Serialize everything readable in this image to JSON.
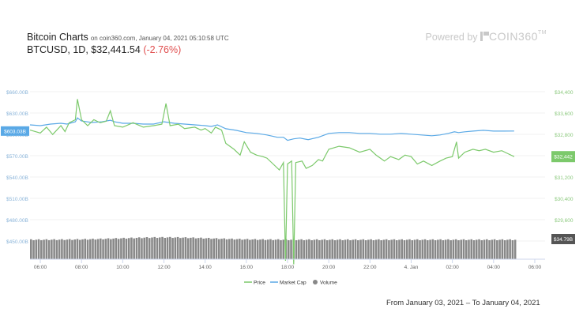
{
  "header": {
    "title": "Bitcoin Charts",
    "subtitle": "on coin360.com, January 04, 2021 05:10:58 UTC",
    "quote": "BTCUSD, 1D, $32,441.54",
    "change": "(-2.76%)",
    "powered_by": "Powered by",
    "brand": "COIN360",
    "brand_tm": "TM"
  },
  "footer": {
    "range": "From January 03, 2021 – To January 04, 2021"
  },
  "colors": {
    "price": "#7cc96b",
    "market_cap": "#5aa9e6",
    "volume": "#888888",
    "left_axis": "#8ab4d9",
    "right_axis": "#8cc97e"
  },
  "chart_data": {
    "type": "line",
    "x_ticks": [
      "06:00",
      "08:00",
      "10:00",
      "12:00",
      "14:00",
      "16:00",
      "18:00",
      "20:00",
      "22:00",
      "4. Jan",
      "02:00",
      "04:00",
      "06:00"
    ],
    "x_tick_hours": [
      6,
      8,
      10,
      12,
      14,
      16,
      18,
      20,
      22,
      24,
      26,
      28,
      30
    ],
    "x_range": [
      5.5,
      30.5
    ],
    "left_axis": {
      "ticks": [
        "$660.00B",
        "$630.00B",
        "$600.00B",
        "$570.00B",
        "$540.00B",
        "$510.00B",
        "$480.00B",
        "$450.00B"
      ],
      "range": [
        436,
        670
      ]
    },
    "right_axis": {
      "ticks": [
        "$34,400",
        "$33,600",
        "$32,800",
        "$32,000",
        "$31,200",
        "$30,400",
        "$29,600"
      ],
      "range": [
        28920,
        35080
      ]
    },
    "current_labels": {
      "market_cap": "$603.03B",
      "price": "$32,442",
      "volume": "$34.79B"
    },
    "series": [
      {
        "name": "Price",
        "axis": "right",
        "points": [
          [
            5.5,
            33350
          ],
          [
            6.0,
            33250
          ],
          [
            6.3,
            33450
          ],
          [
            6.6,
            33200
          ],
          [
            7.0,
            33500
          ],
          [
            7.2,
            33300
          ],
          [
            7.4,
            33600
          ],
          [
            7.7,
            33700
          ],
          [
            7.8,
            34400
          ],
          [
            8.0,
            33700
          ],
          [
            8.3,
            33500
          ],
          [
            8.6,
            33700
          ],
          [
            8.9,
            33600
          ],
          [
            9.2,
            33650
          ],
          [
            9.4,
            34000
          ],
          [
            9.6,
            33500
          ],
          [
            10.0,
            33450
          ],
          [
            10.5,
            33600
          ],
          [
            11.0,
            33450
          ],
          [
            11.5,
            33500
          ],
          [
            11.9,
            33550
          ],
          [
            12.1,
            34250
          ],
          [
            12.3,
            33500
          ],
          [
            12.7,
            33550
          ],
          [
            13.0,
            33400
          ],
          [
            13.5,
            33450
          ],
          [
            13.8,
            33350
          ],
          [
            14.0,
            33400
          ],
          [
            14.3,
            33250
          ],
          [
            14.5,
            33450
          ],
          [
            14.8,
            33350
          ],
          [
            15.0,
            32900
          ],
          [
            15.4,
            32700
          ],
          [
            15.7,
            32500
          ],
          [
            15.9,
            32950
          ],
          [
            16.2,
            32600
          ],
          [
            16.5,
            32500
          ],
          [
            16.8,
            32450
          ],
          [
            17.0,
            32400
          ],
          [
            17.3,
            32200
          ],
          [
            17.6,
            32000
          ],
          [
            17.8,
            32250
          ],
          [
            17.9,
            28920
          ],
          [
            18.0,
            32200
          ],
          [
            18.2,
            32300
          ],
          [
            18.3,
            28800
          ],
          [
            18.4,
            32250
          ],
          [
            18.7,
            32300
          ],
          [
            18.9,
            32050
          ],
          [
            19.2,
            32150
          ],
          [
            19.5,
            32350
          ],
          [
            19.7,
            32300
          ],
          [
            20.0,
            32700
          ],
          [
            20.5,
            32800
          ],
          [
            21.0,
            32750
          ],
          [
            21.5,
            32600
          ],
          [
            22.0,
            32700
          ],
          [
            22.3,
            32500
          ],
          [
            22.7,
            32300
          ],
          [
            23.0,
            32450
          ],
          [
            23.4,
            32350
          ],
          [
            23.7,
            32500
          ],
          [
            24.0,
            32450
          ],
          [
            24.3,
            32200
          ],
          [
            24.6,
            32300
          ],
          [
            25.0,
            32150
          ],
          [
            25.4,
            32300
          ],
          [
            25.7,
            32400
          ],
          [
            26.0,
            32450
          ],
          [
            26.2,
            32950
          ],
          [
            26.3,
            32400
          ],
          [
            26.6,
            32600
          ],
          [
            27.0,
            32700
          ],
          [
            27.3,
            32650
          ],
          [
            27.6,
            32700
          ],
          [
            28.0,
            32600
          ],
          [
            28.4,
            32650
          ],
          [
            28.7,
            32550
          ],
          [
            29.0,
            32450
          ]
        ]
      },
      {
        "name": "Market Cap",
        "axis": "left",
        "points": [
          [
            5.5,
            611
          ],
          [
            6.0,
            610
          ],
          [
            6.5,
            612
          ],
          [
            7.0,
            613
          ],
          [
            7.3,
            612
          ],
          [
            7.7,
            615
          ],
          [
            7.8,
            620
          ],
          [
            8.0,
            616
          ],
          [
            8.5,
            614
          ],
          [
            9.0,
            615
          ],
          [
            9.4,
            617
          ],
          [
            9.6,
            615
          ],
          [
            10.0,
            613
          ],
          [
            10.5,
            613
          ],
          [
            11.0,
            612
          ],
          [
            11.5,
            612
          ],
          [
            12.0,
            615
          ],
          [
            12.5,
            613
          ],
          [
            13.0,
            612
          ],
          [
            13.5,
            611
          ],
          [
            14.0,
            610
          ],
          [
            14.3,
            609
          ],
          [
            14.6,
            611
          ],
          [
            15.0,
            606
          ],
          [
            15.5,
            604
          ],
          [
            16.0,
            601
          ],
          [
            16.5,
            600
          ],
          [
            17.0,
            598
          ],
          [
            17.5,
            595
          ],
          [
            17.8,
            595
          ],
          [
            18.0,
            591
          ],
          [
            18.3,
            593
          ],
          [
            18.6,
            594
          ],
          [
            19.0,
            592
          ],
          [
            19.5,
            595
          ],
          [
            20.0,
            600
          ],
          [
            20.5,
            601
          ],
          [
            21.0,
            601
          ],
          [
            21.5,
            600
          ],
          [
            22.0,
            600
          ],
          [
            22.5,
            599
          ],
          [
            23.0,
            599
          ],
          [
            23.5,
            600
          ],
          [
            24.0,
            599
          ],
          [
            24.5,
            598
          ],
          [
            25.0,
            597
          ],
          [
            25.4,
            598
          ],
          [
            25.8,
            600
          ],
          [
            26.1,
            602
          ],
          [
            26.3,
            601
          ],
          [
            26.6,
            602
          ],
          [
            27.0,
            603
          ],
          [
            27.5,
            604
          ],
          [
            28.0,
            603
          ],
          [
            28.5,
            603
          ],
          [
            29.0,
            603.03
          ]
        ]
      },
      {
        "name": "Volume",
        "values": "bars",
        "approx_level": "roughly constant with a slight peak near 12:00"
      }
    ]
  },
  "legend": [
    {
      "name": "Price",
      "color": "#7cc96b",
      "shape": "line"
    },
    {
      "name": "Market Cap",
      "color": "#5aa9e6",
      "shape": "line"
    },
    {
      "name": "Volume",
      "color": "#888888",
      "shape": "dot"
    }
  ]
}
